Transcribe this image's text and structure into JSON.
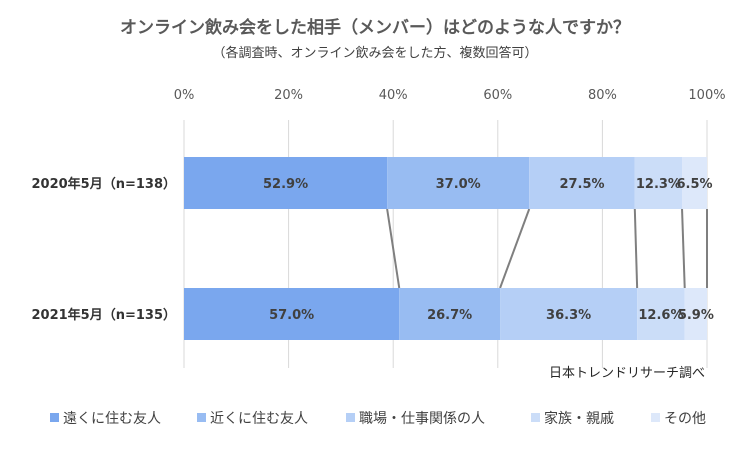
{
  "chart_data": {
    "type": "bar",
    "orientation": "horizontal",
    "stacked": "100%",
    "title": "オンライン飲み会をした相手（メンバー）はどのような人ですか？",
    "subtitle": "（各調査時、オンライン飲み会をした方、複数回答可）",
    "source": "日本トレンドリサーチ調べ",
    "categories": [
      "2020年5月（n=138）",
      "2021年5月（n=135）"
    ],
    "series": [
      {
        "name": "遠くに住む友人",
        "color": "#7AA7EE",
        "values": [
          52.9,
          57.0
        ],
        "labels": [
          "52.9%",
          "57.0%"
        ]
      },
      {
        "name": "近くに住む友人",
        "color": "#98BCF2",
        "values": [
          37.0,
          26.7
        ],
        "labels": [
          "37.0%",
          "26.7%"
        ]
      },
      {
        "name": "職場・仕事関係の人",
        "color": "#B5CFF6",
        "values": [
          27.5,
          36.3
        ],
        "labels": [
          "27.5%",
          "36.3%"
        ]
      },
      {
        "name": "家族・親戚",
        "color": "#CBDDF8",
        "values": [
          12.3,
          12.6
        ],
        "labels": [
          "12.3%",
          "12.6%"
        ]
      },
      {
        "name": "その他",
        "color": "#DDE8FA",
        "values": [
          6.5,
          5.9
        ],
        "labels": [
          "6.5%",
          "5.9%"
        ]
      }
    ],
    "xticks": [
      "0%",
      "20%",
      "40%",
      "60%",
      "80%",
      "100%"
    ],
    "xlim": [
      0,
      100
    ],
    "grid": true,
    "series_lines": true,
    "legend_position": "bottom"
  }
}
